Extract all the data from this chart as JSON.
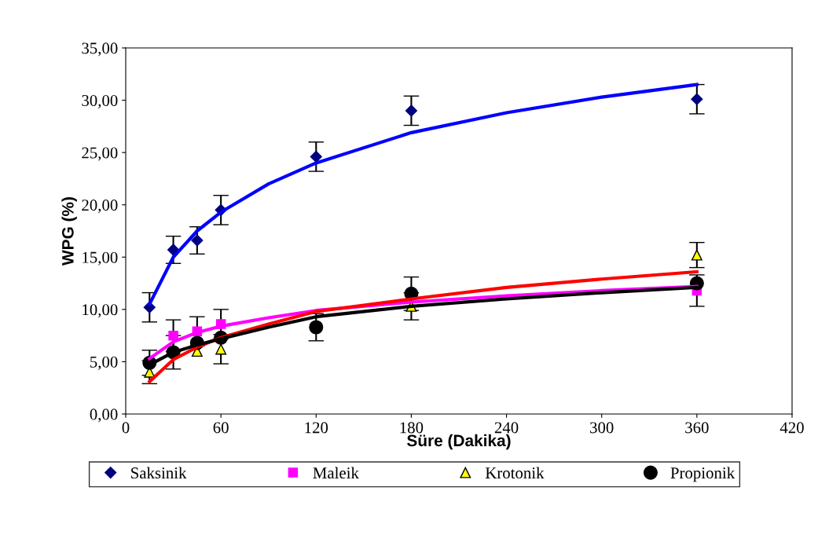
{
  "chart_data": {
    "type": "scatter",
    "xlabel": "Süre (Dakika)",
    "ylabel": "WPG (%)",
    "x": [
      15,
      30,
      45,
      60,
      120,
      180,
      360
    ],
    "series": [
      {
        "name": "Saksinik",
        "color": "#000080",
        "marker": "diamond",
        "values": [
          10.2,
          15.7,
          16.6,
          19.5,
          24.6,
          29.0,
          30.1
        ],
        "errors": [
          1.4,
          1.3,
          1.3,
          1.4,
          1.4,
          1.4,
          1.4
        ]
      },
      {
        "name": "Maleik",
        "color": "#ff00ff",
        "marker": "square",
        "values": [
          null,
          7.5,
          7.9,
          8.6,
          null,
          null,
          11.8
        ],
        "errors": [
          null,
          1.5,
          1.4,
          1.4,
          null,
          null,
          1.5
        ]
      },
      {
        "name": "Krotonik",
        "color": "#ffff00",
        "marker": "triangle",
        "values": [
          4.0,
          null,
          6.0,
          6.2,
          null,
          10.3,
          15.2
        ],
        "errors": [
          1.1,
          null,
          null,
          1.4,
          null,
          1.3,
          1.2
        ]
      },
      {
        "name": "Propionik",
        "color": "#000000",
        "marker": "circle",
        "values": [
          4.9,
          5.9,
          6.8,
          7.3,
          8.3,
          11.5,
          12.5
        ],
        "errors": [
          1.2,
          1.6,
          null,
          null,
          1.3,
          1.6,
          null
        ]
      },
      {
        "type": "line",
        "color": "#0000ff",
        "x": [
          15,
          30,
          45,
          60,
          90,
          120,
          180,
          240,
          300,
          360
        ],
        "values": [
          10.5,
          15.0,
          17.5,
          19.3,
          22.0,
          24.0,
          26.9,
          28.8,
          30.3,
          31.5
        ]
      },
      {
        "type": "line",
        "color": "#ff00ff",
        "x": [
          15,
          30,
          45,
          60,
          90,
          120,
          180,
          240,
          300,
          360
        ],
        "values": [
          5.3,
          6.9,
          7.8,
          8.4,
          9.2,
          9.9,
          10.7,
          11.3,
          11.8,
          12.2
        ]
      },
      {
        "type": "line",
        "color": "#ff0000",
        "x": [
          15,
          30,
          45,
          60,
          90,
          120,
          180,
          240,
          300,
          360
        ],
        "values": [
          3.1,
          5.2,
          6.4,
          7.3,
          8.6,
          9.8,
          11.0,
          12.1,
          12.9,
          13.6
        ]
      },
      {
        "type": "line",
        "color": "#000000",
        "x": [
          15,
          30,
          45,
          60,
          90,
          120,
          180,
          240,
          300,
          360
        ],
        "values": [
          4.7,
          5.9,
          6.6,
          7.2,
          8.3,
          9.3,
          10.3,
          11.0,
          11.6,
          12.1
        ]
      }
    ],
    "xlim": [
      0,
      420
    ],
    "xticks": [
      0,
      60,
      120,
      180,
      240,
      300,
      360,
      420
    ],
    "ylim": [
      0,
      35
    ],
    "yticks": [
      {
        "value": 0,
        "label": "0,00"
      },
      {
        "value": 5,
        "label": "5,00"
      },
      {
        "value": 10,
        "label": "10,00"
      },
      {
        "value": 15,
        "label": "15,00"
      },
      {
        "value": 20,
        "label": "20,00"
      },
      {
        "value": 25,
        "label": "25,00"
      },
      {
        "value": 30,
        "label": "30,00"
      },
      {
        "value": 35,
        "label": "35,00"
      }
    ],
    "grid": false,
    "legend": "bottom"
  }
}
